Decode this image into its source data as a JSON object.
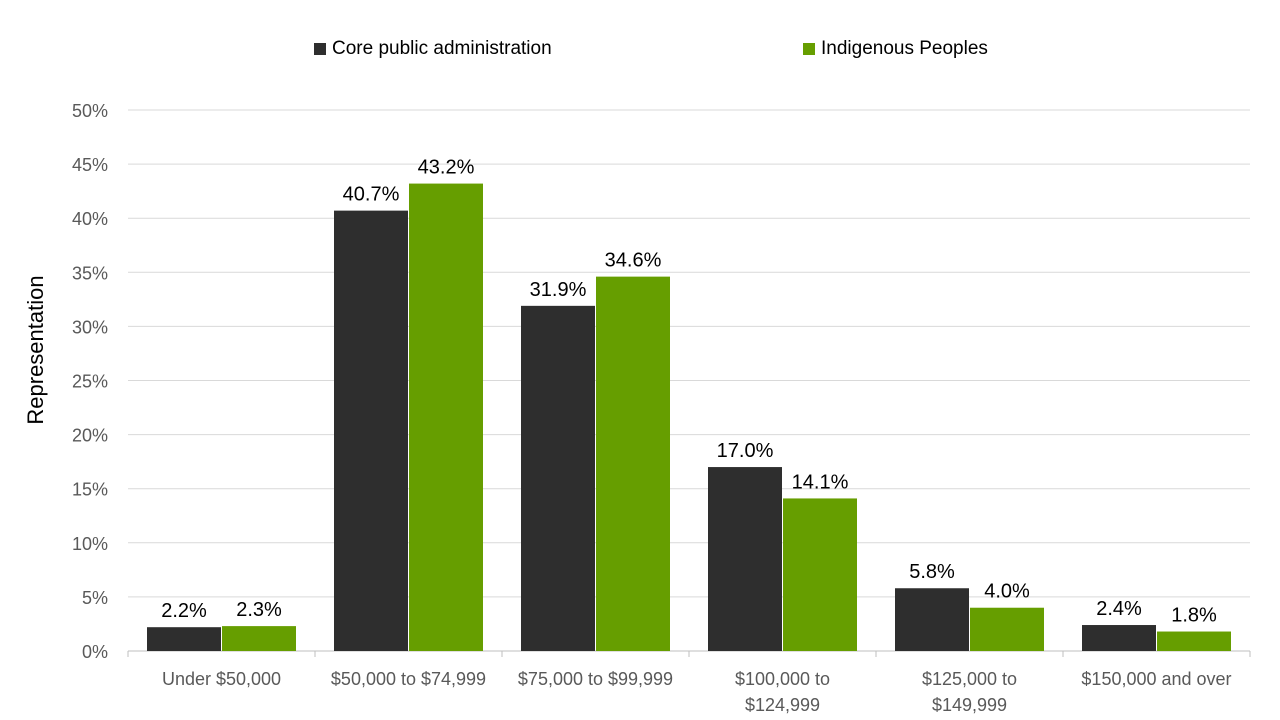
{
  "chart_data": {
    "type": "bar",
    "title": "",
    "xlabel": "",
    "ylabel": "Representation",
    "ylim": [
      0,
      50
    ],
    "yticks": [
      0,
      5,
      10,
      15,
      20,
      25,
      30,
      35,
      40,
      45,
      50
    ],
    "ytick_labels": [
      "0%",
      "5%",
      "10%",
      "15%",
      "20%",
      "25%",
      "30%",
      "35%",
      "40%",
      "45%",
      "50%"
    ],
    "categories": [
      [
        "Under $50,000"
      ],
      [
        "$50,000 to $74,999"
      ],
      [
        "$75,000 to $99,999"
      ],
      [
        "$100,000 to",
        "$124,999"
      ],
      [
        "$125,000 to",
        "$149,999"
      ],
      [
        "$150,000 and over"
      ]
    ],
    "series": [
      {
        "name": "Core public administration",
        "color": "#2e2e2e",
        "values": [
          2.2,
          40.7,
          31.9,
          17.0,
          5.8,
          2.4
        ],
        "labels": [
          "2.2%",
          "40.7%",
          "31.9%",
          "17.0%",
          "5.8%",
          "2.4%"
        ]
      },
      {
        "name": "Indigenous Peoples",
        "color": "#669e00",
        "values": [
          2.3,
          43.2,
          34.6,
          14.1,
          4.0,
          1.8
        ],
        "labels": [
          "2.3%",
          "43.2%",
          "34.6%",
          "14.1%",
          "4.0%",
          "1.8%"
        ]
      }
    ],
    "grid": true,
    "legend": "top-center"
  }
}
